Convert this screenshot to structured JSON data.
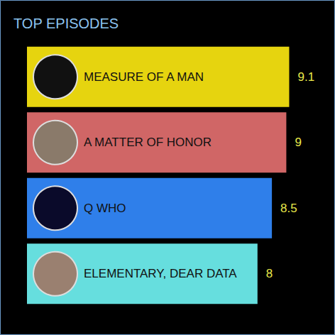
{
  "chart_data": {
    "type": "bar",
    "title": "TOP EPISODES",
    "orientation": "horizontal",
    "categories": [
      "MEASURE OF A MAN",
      "A MATTER OF HONOR",
      "Q WHO",
      "ELEMENTARY, DEAR DATA"
    ],
    "values": [
      9.1,
      9,
      8.5,
      8
    ],
    "colors": [
      "#e6d40f",
      "#d06666",
      "#2f7fea",
      "#66dede"
    ],
    "xlim": [
      0,
      10
    ],
    "data_labels": true,
    "tick_labels": false,
    "grid": false
  }
}
